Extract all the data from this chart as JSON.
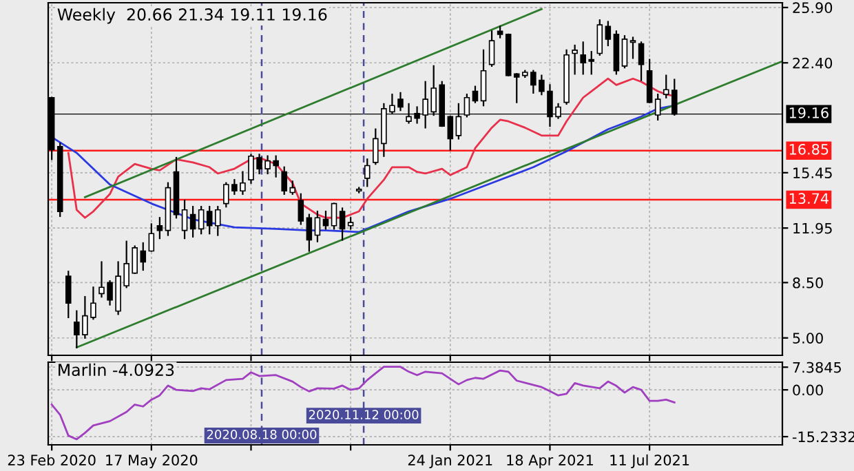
{
  "chart_data": [
    {
      "type": "candlestick",
      "title": "Weekly  20.66 21.34 19.11 19.16",
      "x": [
        "2020-02-23",
        "2020-03-01",
        "2020-03-08",
        "2020-03-15",
        "2020-03-22",
        "2020-03-29",
        "2020-04-05",
        "2020-04-12",
        "2020-04-19",
        "2020-04-26",
        "2020-05-03",
        "2020-05-10",
        "2020-05-17",
        "2020-05-24",
        "2020-05-31",
        "2020-06-07",
        "2020-06-14",
        "2020-06-21",
        "2020-06-28",
        "2020-07-05",
        "2020-07-12",
        "2020-07-19",
        "2020-07-26",
        "2020-08-02",
        "2020-08-09",
        "2020-08-16",
        "2020-08-23",
        "2020-08-30",
        "2020-09-06",
        "2020-09-13",
        "2020-09-20",
        "2020-09-27",
        "2020-10-04",
        "2020-10-11",
        "2020-10-18",
        "2020-10-25",
        "2020-11-01",
        "2020-11-08",
        "2020-11-15",
        "2020-11-22",
        "2020-11-29",
        "2020-12-06",
        "2020-12-13",
        "2020-12-20",
        "2020-12-27",
        "2021-01-03",
        "2021-01-10",
        "2021-01-17",
        "2021-01-24",
        "2021-01-31",
        "2021-02-07",
        "2021-02-14",
        "2021-02-21",
        "2021-02-28",
        "2021-03-07",
        "2021-03-14",
        "2021-03-21",
        "2021-03-28",
        "2021-04-04",
        "2021-04-11",
        "2021-04-18",
        "2021-04-25",
        "2021-05-02",
        "2021-05-09",
        "2021-05-16",
        "2021-05-23",
        "2021-05-30",
        "2021-06-06",
        "2021-06-13",
        "2021-06-20",
        "2021-06-27",
        "2021-07-04",
        "2021-07-11",
        "2021-07-18",
        "2021-07-25",
        "2021-08-01"
      ],
      "ohlc": [
        [
          20.2,
          20.2,
          16.3,
          16.9
        ],
        [
          17.1,
          17.3,
          12.7,
          13.0
        ],
        [
          8.9,
          9.2,
          6.3,
          7.2
        ],
        [
          6.0,
          6.7,
          4.4,
          5.2
        ],
        [
          5.2,
          7.6,
          5.0,
          6.4
        ],
        [
          6.3,
          8.2,
          6.2,
          7.2
        ],
        [
          7.8,
          9.8,
          7.6,
          8.2
        ],
        [
          8.5,
          8.6,
          7.1,
          7.4
        ],
        [
          6.7,
          9.8,
          6.5,
          8.9
        ],
        [
          8.3,
          11.1,
          8.2,
          9.7
        ],
        [
          9.1,
          10.8,
          9.1,
          10.7
        ],
        [
          10.5,
          11.0,
          9.3,
          9.8
        ],
        [
          10.5,
          12.2,
          10.5,
          11.6
        ],
        [
          12.1,
          12.6,
          11.3,
          11.8
        ],
        [
          11.8,
          14.8,
          11.5,
          14.5
        ],
        [
          15.5,
          16.4,
          12.6,
          12.8
        ],
        [
          11.8,
          13.7,
          11.3,
          13.1
        ],
        [
          12.8,
          13.3,
          11.4,
          11.9
        ],
        [
          11.9,
          13.3,
          11.6,
          13.1
        ],
        [
          13.0,
          13.3,
          11.6,
          12.1
        ],
        [
          12.1,
          13.3,
          11.5,
          13.1
        ],
        [
          13.5,
          14.8,
          13.3,
          14.7
        ],
        [
          14.7,
          15.0,
          14.1,
          14.3
        ],
        [
          14.3,
          15.5,
          14.1,
          14.8
        ],
        [
          15.0,
          16.6,
          14.8,
          16.5
        ],
        [
          16.4,
          16.6,
          15.4,
          15.7
        ],
        [
          15.7,
          16.5,
          15.4,
          16.2
        ],
        [
          16.2,
          16.5,
          15.2,
          15.9
        ],
        [
          15.5,
          15.8,
          14.1,
          14.3
        ],
        [
          14.2,
          14.9,
          14.1,
          14.5
        ],
        [
          13.7,
          14.1,
          12.2,
          12.4
        ],
        [
          12.6,
          12.8,
          10.5,
          11.2
        ],
        [
          11.5,
          13.0,
          11.1,
          12.6
        ],
        [
          12.5,
          13.0,
          11.9,
          12.1
        ],
        [
          12.1,
          13.5,
          11.9,
          13.5
        ],
        [
          13.0,
          13.2,
          11.2,
          11.9
        ],
        [
          12.1,
          12.6,
          11.9,
          12.3
        ],
        [
          14.3,
          14.5,
          14.2,
          14.4
        ],
        [
          15.1,
          16.3,
          14.6,
          15.9
        ],
        [
          16.1,
          18.2,
          16.0,
          17.6
        ],
        [
          17.3,
          19.8,
          16.5,
          19.5
        ],
        [
          19.3,
          20.4,
          19.2,
          19.7
        ],
        [
          20.1,
          20.5,
          19.4,
          19.6
        ],
        [
          18.7,
          19.8,
          18.6,
          19.0
        ],
        [
          19.2,
          19.6,
          18.6,
          18.9
        ],
        [
          19.1,
          21.2,
          18.3,
          20.1
        ],
        [
          19.3,
          22.2,
          19.1,
          20.8
        ],
        [
          21.0,
          21.2,
          18.4,
          18.4
        ],
        [
          19.0,
          19.0,
          16.9,
          17.6
        ],
        [
          17.8,
          19.8,
          17.6,
          19.0
        ],
        [
          19.1,
          20.4,
          19.0,
          20.2
        ],
        [
          20.6,
          20.9,
          19.9,
          20.0
        ],
        [
          20.0,
          23.2,
          19.7,
          21.9
        ],
        [
          22.3,
          24.4,
          22.2,
          23.8
        ],
        [
          24.4,
          24.7,
          24.0,
          24.2
        ],
        [
          24.2,
          24.2,
          21.6,
          21.6
        ],
        [
          21.7,
          21.7,
          19.9,
          21.5
        ],
        [
          21.6,
          21.9,
          21.5,
          21.8
        ],
        [
          21.8,
          21.9,
          20.5,
          21.0
        ],
        [
          21.3,
          21.6,
          20.4,
          20.6
        ],
        [
          20.6,
          21.0,
          18.4,
          19.0
        ],
        [
          19.0,
          19.8,
          18.9,
          19.6
        ],
        [
          19.9,
          23.2,
          19.8,
          22.9
        ],
        [
          23.0,
          23.5,
          21.7,
          23.2
        ],
        [
          22.9,
          23.7,
          21.7,
          22.4
        ],
        [
          22.6,
          23.1,
          21.7,
          22.5
        ],
        [
          23.0,
          25.1,
          22.9,
          24.8
        ],
        [
          24.7,
          25.0,
          23.5,
          23.9
        ],
        [
          24.2,
          24.4,
          21.7,
          21.9
        ],
        [
          22.2,
          24.1,
          22.1,
          23.9
        ],
        [
          23.7,
          24.0,
          22.7,
          23.8
        ],
        [
          23.6,
          23.7,
          21.3,
          22.3
        ],
        [
          21.9,
          22.6,
          19.9,
          19.9
        ],
        [
          19.1,
          20.4,
          18.8,
          20.1
        ],
        [
          20.4,
          21.6,
          20.2,
          20.7
        ],
        [
          20.66,
          21.34,
          19.11,
          19.16
        ]
      ],
      "series": [
        {
          "type": "line",
          "color": "#e8304a",
          "x": [
            "2020-03-08",
            "2020-03-15",
            "2020-03-22",
            "2020-03-29",
            "2020-04-12",
            "2020-04-19",
            "2020-05-03",
            "2020-05-17",
            "2020-05-24",
            "2020-06-07",
            "2020-06-21",
            "2020-07-05",
            "2020-07-12",
            "2020-07-26",
            "2020-08-09",
            "2020-08-16",
            "2020-08-30",
            "2020-09-13",
            "2020-09-20",
            "2020-10-04",
            "2020-10-11",
            "2020-10-25",
            "2020-11-08",
            "2020-11-15",
            "2020-11-29",
            "2020-12-06",
            "2020-12-20",
            "2020-12-27",
            "2021-01-03",
            "2021-01-17",
            "2021-01-24",
            "2021-02-07",
            "2021-02-14",
            "2021-02-28",
            "2021-03-07",
            "2021-03-14",
            "2021-03-28",
            "2021-04-11",
            "2021-04-25",
            "2021-05-02",
            "2021-05-16",
            "2021-05-23",
            "2021-06-06",
            "2021-06-13",
            "2021-06-27",
            "2021-07-04",
            "2021-07-18",
            "2021-07-25",
            "2021-08-01"
          ],
          "values": [
            16.7,
            13.1,
            12.6,
            13.0,
            14.1,
            15.2,
            16.0,
            15.7,
            15.6,
            16.3,
            16.1,
            15.8,
            15.4,
            15.7,
            16.3,
            16.4,
            16.0,
            14.8,
            13.5,
            12.8,
            12.6,
            12.6,
            13.0,
            13.8,
            15.0,
            15.8,
            15.8,
            15.5,
            15.4,
            15.7,
            15.3,
            15.8,
            17.0,
            18.3,
            18.8,
            18.7,
            18.3,
            17.8,
            17.8,
            18.7,
            20.2,
            20.6,
            21.4,
            21.0,
            21.4,
            21.2,
            20.6,
            20.4,
            20.3
          ]
        },
        {
          "type": "line",
          "color": "#2a3ae0",
          "x": [
            "2020-02-23",
            "2020-03-15",
            "2020-04-12",
            "2020-05-17",
            "2020-06-21",
            "2020-07-26",
            "2020-08-30",
            "2020-09-27",
            "2020-10-11",
            "2020-11-08",
            "2020-12-20",
            "2021-01-24",
            "2021-02-28",
            "2021-04-04",
            "2021-05-02",
            "2021-06-06",
            "2021-07-04",
            "2021-07-18",
            "2021-08-01"
          ],
          "values": [
            17.7,
            16.7,
            14.7,
            13.5,
            12.5,
            12.0,
            11.9,
            11.8,
            11.8,
            11.7,
            13.0,
            13.8,
            14.8,
            15.8,
            16.8,
            18.2,
            19.0,
            19.5,
            19.7
          ]
        },
        {
          "type": "line",
          "color": "#2e7d2e",
          "x": [
            "2020-03-22",
            "2021-04-11"
          ],
          "values": [
            13.9,
            25.8
          ]
        },
        {
          "type": "line",
          "color": "#2e7d2e",
          "x": [
            "2020-03-15",
            "2021-10-31"
          ],
          "values": [
            4.4,
            22.5
          ]
        }
      ],
      "xlim": [
        "2020-02-20",
        "2021-10-31"
      ],
      "ylim": [
        3.9,
        26.2
      ],
      "xticks": [
        {
          "value": "2020-02-23",
          "label": null
        },
        {
          "value": "2020-05-17",
          "label": null
        },
        {
          "value": "2020-08-09",
          "label": null
        },
        {
          "value": "2020-11-01",
          "label": null
        },
        {
          "value": "2021-01-24",
          "label": null
        },
        {
          "value": "2021-04-18",
          "label": null
        },
        {
          "value": "2021-07-11",
          "label": null
        }
      ],
      "yticks": [
        {
          "value": 5,
          "label": "5.00"
        },
        {
          "value": 8.5,
          "label": "8.50"
        },
        11.95,
        15.45,
        {
          "value": 22.4,
          "label": "22.40"
        },
        {
          "value": 25.9,
          "label": "25.90"
        }
      ],
      "tick_labels": "y",
      "grid": true,
      "ref_lines": [
        {
          "axis": "y",
          "value": 16.85,
          "label": "16.85",
          "color": "#ff1a1a"
        },
        {
          "axis": "y",
          "value": 13.74,
          "label": "13.74",
          "color": "#ff1a1a"
        },
        {
          "axis": "y",
          "value": 19.16,
          "label": "19.16",
          "color": "#000000"
        },
        {
          "axis": "x",
          "value": "2020-08-18",
          "color": "#4a4a9a",
          "line_style": "dashed"
        },
        {
          "axis": "x",
          "value": "2020-11-12",
          "color": "#4a4a9a",
          "line_style": "dashed"
        }
      ]
    },
    {
      "type": "line",
      "title": "Marlin -4.0923",
      "series": [
        {
          "color": "#a040c0",
          "x": [
            "2020-02-23",
            "2020-03-01",
            "2020-03-08",
            "2020-03-15",
            "2020-03-22",
            "2020-03-29",
            "2020-04-12",
            "2020-04-26",
            "2020-05-03",
            "2020-05-10",
            "2020-05-17",
            "2020-05-24",
            "2020-05-31",
            "2020-06-07",
            "2020-06-21",
            "2020-06-28",
            "2020-07-05",
            "2020-07-19",
            "2020-08-02",
            "2020-08-09",
            "2020-08-16",
            "2020-08-30",
            "2020-09-13",
            "2020-09-20",
            "2020-09-27",
            "2020-10-04",
            "2020-10-18",
            "2020-10-25",
            "2020-11-01",
            "2020-11-08",
            "2020-11-15",
            "2020-11-22",
            "2020-11-29",
            "2020-12-13",
            "2020-12-20",
            "2020-12-27",
            "2021-01-03",
            "2021-01-17",
            "2021-01-31",
            "2021-02-07",
            "2021-02-14",
            "2021-02-21",
            "2021-03-07",
            "2021-03-14",
            "2021-03-21",
            "2021-03-28",
            "2021-04-11",
            "2021-04-18",
            "2021-04-25",
            "2021-05-02",
            "2021-05-09",
            "2021-05-16",
            "2021-05-30",
            "2021-06-06",
            "2021-06-13",
            "2021-06-20",
            "2021-06-27",
            "2021-07-04",
            "2021-07-11",
            "2021-07-18",
            "2021-07-25",
            "2021-08-01"
          ],
          "values": [
            -4.8,
            -8.1,
            -14.9,
            -16.1,
            -14.0,
            -11.6,
            -10.2,
            -7.2,
            -4.8,
            -5.4,
            -3.2,
            -1.8,
            1.4,
            0,
            -0.4,
            0.5,
            0.2,
            3.2,
            3.6,
            5.7,
            4.5,
            4.8,
            2.7,
            0.9,
            -0.5,
            0.5,
            0.4,
            1.4,
            0,
            0.5,
            3.2,
            5.4,
            7.5,
            7.5,
            5.9,
            4.8,
            5.9,
            5.4,
            1.8,
            3.2,
            3.9,
            3.6,
            6.3,
            5.9,
            3.0,
            2.3,
            0.9,
            -0.4,
            -1.8,
            -1.3,
            2.2,
            1.4,
            0.5,
            2.7,
            1.3,
            -0.9,
            0.9,
            0,
            -3.6,
            -3.6,
            -3.2,
            -4.1
          ]
        }
      ],
      "xlim": [
        "2020-02-20",
        "2021-10-31"
      ],
      "ylim": [
        -17.9,
        9.0
      ],
      "xticks": [
        {
          "value": "2020-02-23",
          "label": "23 Feb 2020"
        },
        {
          "value": "2020-05-17",
          "label": "17 May 2020"
        },
        {
          "value": "2020-08-09",
          "label": null
        },
        {
          "value": "2020-11-01",
          "label": null
        },
        {
          "value": "2021-01-24",
          "label": "24 Jan 2021"
        },
        {
          "value": "2021-04-18",
          "label": "18 Apr 2021"
        },
        {
          "value": "2021-07-11",
          "label": "11 Jul 2021"
        }
      ],
      "yticks": [
        7.3845,
        {
          "value": 0,
          "label": "0.00"
        },
        -15.2332
      ],
      "grid": true,
      "ref_lines": [
        {
          "axis": "x",
          "value": "2020-08-18",
          "label": "2020.08.18 00:00",
          "color": "#4a4a9a",
          "line_style": "dashed"
        },
        {
          "axis": "x",
          "value": "2020-11-12",
          "label": "2020.11.12 00:00",
          "color": "#4a4a9a",
          "line_style": "dashed"
        }
      ]
    }
  ]
}
